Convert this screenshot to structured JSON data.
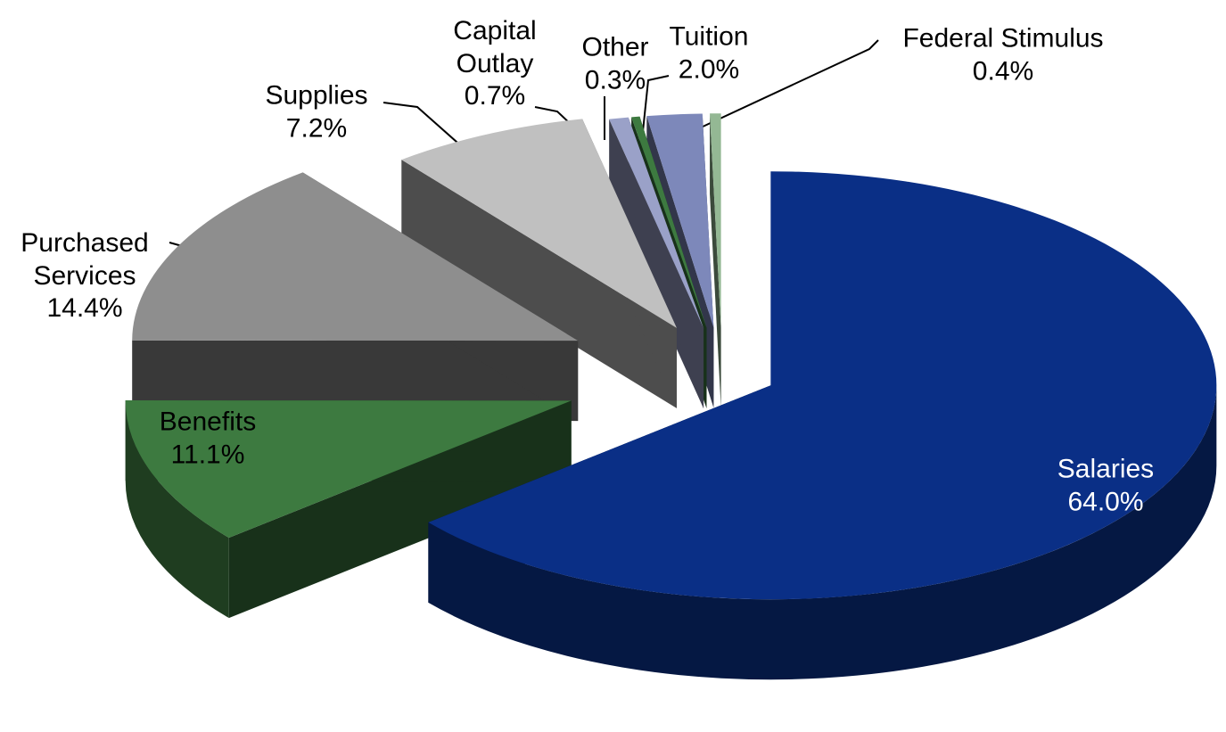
{
  "chart_data": {
    "type": "pie",
    "categories": [
      "Salaries",
      "Benefits",
      "Purchased Services",
      "Supplies",
      "Capital Outlay",
      "Other",
      "Tuition",
      "Federal Stimulus"
    ],
    "values": [
      64.0,
      11.1,
      14.4,
      7.2,
      0.7,
      0.3,
      2.0,
      0.4
    ],
    "value_labels": [
      "64.0%",
      "11.1%",
      "14.4%",
      "7.2%",
      "0.7%",
      "0.3%",
      "2.0%",
      "0.4%"
    ],
    "colors": [
      "#0a2f86",
      "#3d7a40",
      "#8e8e8e",
      "#c0c0c0",
      "#9aa1c8",
      "#3d7a40",
      "#7d88ba",
      "#94b894"
    ]
  }
}
